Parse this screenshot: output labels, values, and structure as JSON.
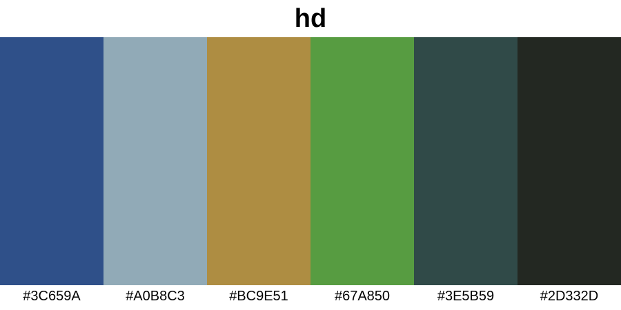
{
  "title": "hd",
  "swatches": [
    {
      "label": "#3C659A",
      "color": "#2F5089"
    },
    {
      "label": "#A0B8C3",
      "color": "#91AAB7"
    },
    {
      "label": "#BC9E51",
      "color": "#AE8D42"
    },
    {
      "label": "#67A850",
      "color": "#579C41"
    },
    {
      "label": "#3E5B59",
      "color": "#304A48"
    },
    {
      "label": "#2D332D",
      "color": "#232822"
    }
  ]
}
